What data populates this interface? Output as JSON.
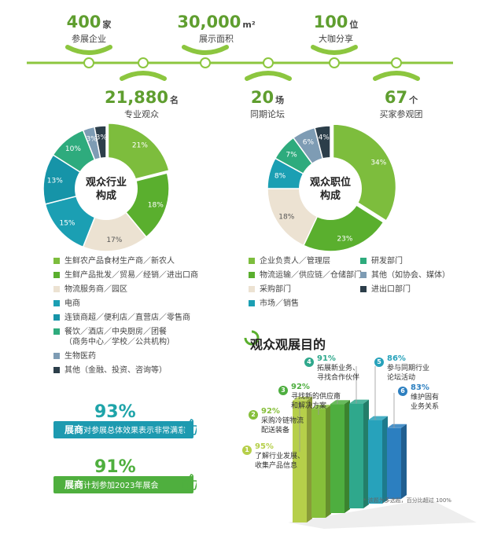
{
  "stats": [
    {
      "value": "400",
      "unit": "家",
      "label": "参展企业"
    },
    {
      "value": "30,000",
      "unit": "m²",
      "label": "展示面积"
    },
    {
      "value": "100",
      "unit": "位",
      "label": "大咖分享"
    },
    {
      "value": "21,880",
      "unit": "名",
      "label": "专业观众"
    },
    {
      "value": "20",
      "unit": "场",
      "label": "同期论坛"
    },
    {
      "value": "67",
      "unit": "个",
      "label": "买家参观团"
    }
  ],
  "chart_data": [
    {
      "type": "pie",
      "title": "观众行业构成",
      "labels": [
        "生鲜农产品食材生产商／新农人",
        "生鲜产品批发／贸易／经销／进出口商",
        "物流服务商／园区",
        "电商",
        "连锁商超／便利店／直营店／零售商",
        "餐饮／酒店／中央厨房／团餐（商务中心／学校／公共机构）",
        "生物医药",
        "其他（金融、投资、咨询等）"
      ],
      "values": [
        21,
        18,
        17,
        15,
        13,
        10,
        3,
        3
      ],
      "colors": [
        "#7dbd3d",
        "#5aaf2e",
        "#ece2d2",
        "#1b9fb3",
        "#1694a8",
        "#2eab7d",
        "#7e9cb4",
        "#2c3e4a"
      ]
    },
    {
      "type": "pie",
      "title": "观众职位构成",
      "labels": [
        "企业负责人／管理层",
        "物流运输／供应链／仓储部门",
        "采购部门",
        "市场／销售",
        "研发部门",
        "其他（如协会、媒体）",
        "进出口部门"
      ],
      "values": [
        34,
        23,
        18,
        8,
        7,
        6,
        4
      ],
      "colors": [
        "#7dbd3d",
        "#5aaf2e",
        "#ece2d2",
        "#1b9fb3",
        "#2eab7d",
        "#7e9cb4",
        "#2c3e4a"
      ]
    },
    {
      "type": "bar",
      "title": "观众观展目的",
      "categories": [
        "了解行业发展、收集产品信息",
        "采购冷链物流配送装备",
        "寻找新的供应商和解决方案",
        "拓展新业务、寻找合作伙伴",
        "参与同期行业论坛活动",
        "维护固有业务关系"
      ],
      "values": [
        95,
        92,
        92,
        91,
        86,
        83
      ],
      "colors": [
        "#b6cf4a",
        "#86bf3a",
        "#4eae3f",
        "#2fa88c",
        "#27a2bb",
        "#2c7fc0"
      ],
      "note": "* 该题为多选题，百分比超过 100%"
    }
  ],
  "legend1": {
    "items": [
      {
        "label": "生鲜农产品食材生产商／新农人",
        "color": "#7dbd3d"
      },
      {
        "label": "生鲜产品批发／贸易／经销／进出口商",
        "color": "#5aaf2e"
      },
      {
        "label": "物流服务商／园区",
        "color": "#ece2d2"
      },
      {
        "label": "电商",
        "color": "#1b9fb3"
      },
      {
        "label": "连锁商超／便利店／直营店／零售商",
        "color": "#1694a8"
      },
      {
        "label": "餐饮／酒店／中央厨房／团餐\n（商务中心／学校／公共机构）",
        "color": "#2eab7d"
      },
      {
        "label": "生物医药",
        "color": "#7e9cb4"
      },
      {
        "label": "其他（金融、投资、咨询等）",
        "color": "#2c3e4a"
      }
    ]
  },
  "legend2": {
    "items": [
      {
        "label": "企业负责人／管理层",
        "color": "#7dbd3d"
      },
      {
        "label": "研发部门",
        "color": "#2eab7d"
      },
      {
        "label": "物流运输／供应链／仓储部门",
        "color": "#5aaf2e"
      },
      {
        "label": "其他（如协会、媒体）",
        "color": "#7e9cb4"
      },
      {
        "label": "采购部门",
        "color": "#ece2d2"
      },
      {
        "label": "进出口部门",
        "color": "#2c3e4a"
      },
      {
        "label": "市场／销售",
        "color": "#1b9fb3"
      }
    ]
  },
  "donut_titles": [
    "观众行业\n构成",
    "观众职位\n构成"
  ],
  "satisfaction": [
    {
      "pct": "93%",
      "bold": "展商",
      "text": "对参展总体效果表示非常满意",
      "color": "#1d9ab0"
    },
    {
      "pct": "91%",
      "bold": "展商",
      "text": "计划参加2023年展会",
      "color": "#4faf3e"
    }
  ],
  "purpose_title": "观众观展目的",
  "purpose_items": [
    {
      "num": "1",
      "pct": "95%",
      "text": "了解行业发展、\n收集产品信息"
    },
    {
      "num": "2",
      "pct": "92%",
      "text": "采购冷链物流\n配送装备"
    },
    {
      "num": "3",
      "pct": "92%",
      "text": "寻找新的供应商\n和解决方案"
    },
    {
      "num": "4",
      "pct": "91%",
      "text": "拓展新业务、\n寻找合作伙伴"
    },
    {
      "num": "5",
      "pct": "86%",
      "text": "参与同期行业\n论坛活动"
    },
    {
      "num": "6",
      "pct": "83%",
      "text": "维护固有\n业务关系"
    }
  ],
  "note": "* 该题为多选题，百分比超过 100%"
}
